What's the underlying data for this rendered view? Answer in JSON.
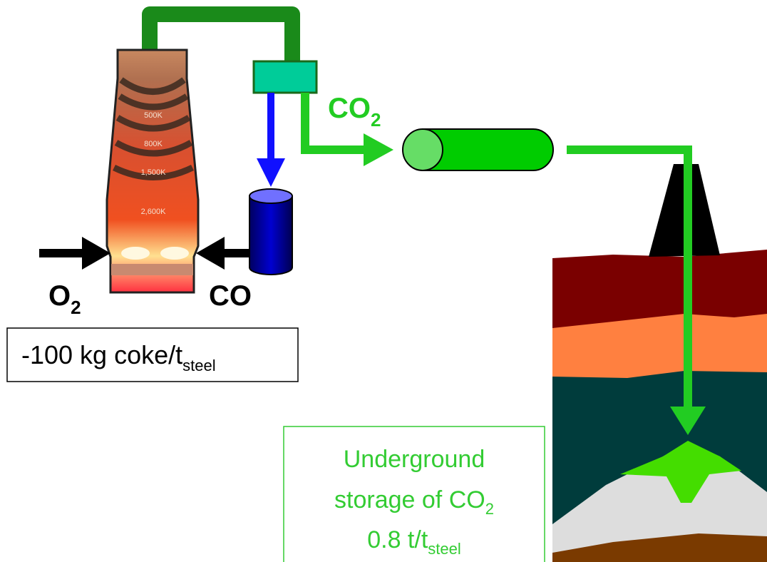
{
  "furnace": {
    "zones": [
      "500K",
      "800K",
      "1,500K",
      "2,600K"
    ]
  },
  "co2_label": {
    "text": "CO",
    "sub": "2"
  },
  "o2_label": {
    "text": "O",
    "sub": "2"
  },
  "co_label": "CO",
  "coke_box": {
    "text": "-100 kg coke/t",
    "sub": "steel"
  },
  "storage_box": {
    "line1": "Underground",
    "line2": {
      "text": "storage of CO",
      "sub": "2"
    },
    "line3": {
      "text": "0.8 t/t",
      "sub": "steel"
    }
  }
}
